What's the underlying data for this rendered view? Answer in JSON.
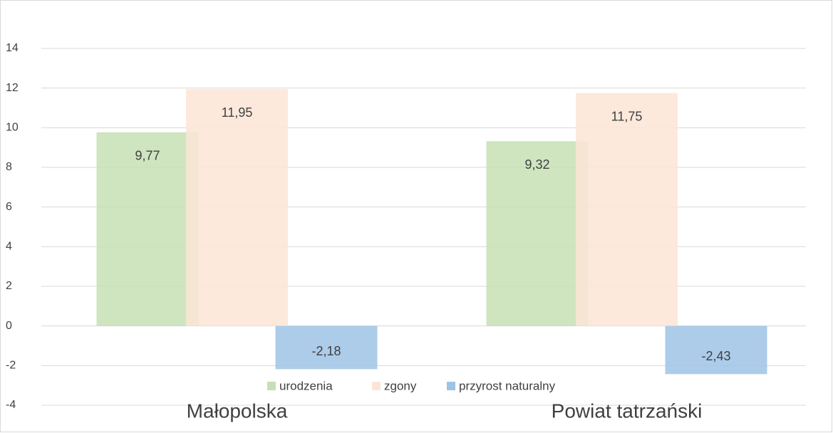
{
  "chart_data": {
    "type": "bar",
    "categories": [
      "Małopolska",
      "Powiat tatrzański"
    ],
    "series": [
      {
        "name": "urodzenia",
        "color": "#c5e0b4",
        "values": [
          9.77,
          9.32
        ],
        "value_labels": [
          "9,77",
          "9,32"
        ]
      },
      {
        "name": "zgony",
        "color": "#fbe5d6",
        "values": [
          11.95,
          11.75
        ],
        "value_labels": [
          "11,95",
          "11,75"
        ]
      },
      {
        "name": "przyrost naturalny",
        "color": "#9dc3e6",
        "values": [
          -2.18,
          -2.43
        ],
        "value_labels": [
          "-2,18",
          "-2,43"
        ]
      }
    ],
    "ylim": [
      -4,
      14
    ],
    "yticks": [
      -4,
      -2,
      0,
      2,
      4,
      6,
      8,
      10,
      12,
      14
    ],
    "grid": true,
    "legend": "bottom"
  }
}
